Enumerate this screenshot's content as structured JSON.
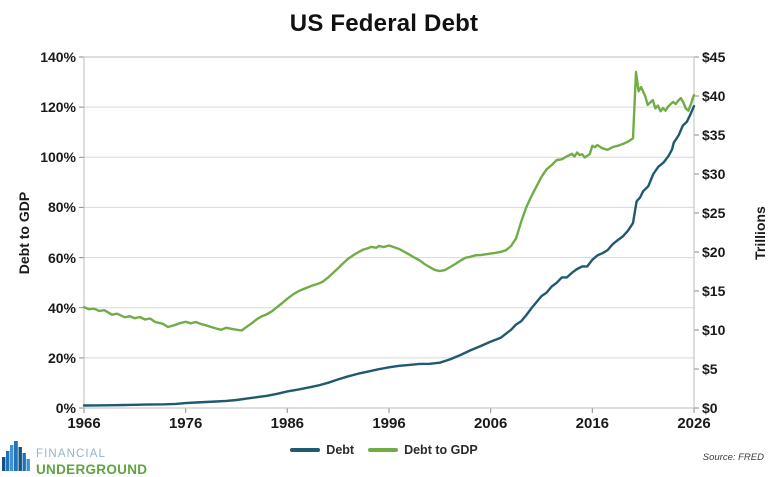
{
  "title": "US Federal Debt",
  "left_axis": {
    "title": "Debt to GDP",
    "min": 0,
    "max": 140,
    "ticks": [
      "0%",
      "20%",
      "40%",
      "60%",
      "80%",
      "100%",
      "120%",
      "140%"
    ]
  },
  "right_axis": {
    "title": "Trillions",
    "min": 0,
    "max": 45,
    "ticks": [
      "$0",
      "$5",
      "$10",
      "$15",
      "$20",
      "$25",
      "$30",
      "$35",
      "$40",
      "$45"
    ]
  },
  "x_axis": {
    "min": 1966,
    "max": 2026,
    "ticks": [
      "1966",
      "1976",
      "1986",
      "1996",
      "2006",
      "2016",
      "2026"
    ]
  },
  "legend": [
    {
      "label": "Debt",
      "color": "#1f5a70"
    },
    {
      "label": "Debt to GDP",
      "color": "#70ad47"
    }
  ],
  "footer": {
    "brand_line1": "FINANCIAL",
    "brand_line2": "UNDERGROUND",
    "source": "Source: FRED"
  },
  "colors": {
    "debt_line": "#1f5a70",
    "debt_to_gdp_line": "#70ad47",
    "gridline": "#d9d9d9",
    "brand_blue": "#2272b9",
    "brand_green": "#5da53e"
  },
  "chart_data": {
    "type": "line",
    "title": "US Federal Debt",
    "x_range": [
      1966,
      2026
    ],
    "left_ylim": [
      0,
      140
    ],
    "right_ylim": [
      0,
      45
    ],
    "grid": "horizontal-only",
    "legend_position": "bottom-center",
    "series": [
      {
        "name": "Debt",
        "axis": "right",
        "unit": "USD trillions",
        "color": "#1f5a70",
        "points": [
          [
            1966,
            0.32
          ],
          [
            1967,
            0.33
          ],
          [
            1968,
            0.35
          ],
          [
            1969,
            0.36
          ],
          [
            1970,
            0.38
          ],
          [
            1971,
            0.41
          ],
          [
            1972,
            0.44
          ],
          [
            1973,
            0.46
          ],
          [
            1974,
            0.48
          ],
          [
            1975,
            0.53
          ],
          [
            1976,
            0.63
          ],
          [
            1977,
            0.7
          ],
          [
            1978,
            0.77
          ],
          [
            1979,
            0.83
          ],
          [
            1980,
            0.91
          ],
          [
            1981,
            1.03
          ],
          [
            1982,
            1.2
          ],
          [
            1983,
            1.38
          ],
          [
            1984,
            1.57
          ],
          [
            1985,
            1.82
          ],
          [
            1986,
            2.13
          ],
          [
            1987,
            2.35
          ],
          [
            1988,
            2.6
          ],
          [
            1989,
            2.87
          ],
          [
            1990,
            3.23
          ],
          [
            1991,
            3.67
          ],
          [
            1992,
            4.06
          ],
          [
            1993,
            4.41
          ],
          [
            1994,
            4.69
          ],
          [
            1995,
            4.97
          ],
          [
            1996,
            5.22
          ],
          [
            1997,
            5.41
          ],
          [
            1998,
            5.53
          ],
          [
            1999,
            5.66
          ],
          [
            2000,
            5.67
          ],
          [
            2001,
            5.81
          ],
          [
            2002,
            6.23
          ],
          [
            2003,
            6.78
          ],
          [
            2004,
            7.38
          ],
          [
            2005,
            7.93
          ],
          [
            2006,
            8.51
          ],
          [
            2007,
            9.01
          ],
          [
            2008,
            10.02
          ],
          [
            2008.5,
            10.7
          ],
          [
            2009,
            11.13
          ],
          [
            2009.5,
            11.91
          ],
          [
            2010,
            12.77
          ],
          [
            2010.5,
            13.56
          ],
          [
            2011,
            14.34
          ],
          [
            2011.5,
            14.79
          ],
          [
            2012,
            15.58
          ],
          [
            2012.5,
            16.07
          ],
          [
            2013,
            16.74
          ],
          [
            2013.5,
            16.74
          ],
          [
            2014,
            17.35
          ],
          [
            2014.5,
            17.82
          ],
          [
            2015,
            18.15
          ],
          [
            2015.5,
            18.15
          ],
          [
            2016,
            19.0
          ],
          [
            2016.5,
            19.57
          ],
          [
            2017,
            19.85
          ],
          [
            2017.5,
            20.24
          ],
          [
            2018,
            21.0
          ],
          [
            2018.5,
            21.52
          ],
          [
            2019,
            22.0
          ],
          [
            2019.5,
            22.72
          ],
          [
            2020,
            23.7
          ],
          [
            2020.35,
            26.5
          ],
          [
            2020.7,
            27.0
          ],
          [
            2021,
            27.8
          ],
          [
            2021.5,
            28.43
          ],
          [
            2022,
            30.0
          ],
          [
            2022.5,
            30.93
          ],
          [
            2023,
            31.46
          ],
          [
            2023.5,
            32.33
          ],
          [
            2023.85,
            33.17
          ],
          [
            2024,
            34.0
          ],
          [
            2024.5,
            35.0
          ],
          [
            2024.9,
            36.2
          ],
          [
            2025.3,
            36.7
          ],
          [
            2025.6,
            37.5
          ],
          [
            2026,
            38.7
          ]
        ]
      },
      {
        "name": "Debt to GDP",
        "axis": "left",
        "unit": "percent",
        "color": "#70ad47",
        "points": [
          [
            1966,
            40.2
          ],
          [
            1966.5,
            39.4
          ],
          [
            1967,
            39.6
          ],
          [
            1967.5,
            38.7
          ],
          [
            1968,
            39.0
          ],
          [
            1968.75,
            37.2
          ],
          [
            1969.25,
            37.6
          ],
          [
            1970,
            36.2
          ],
          [
            1970.5,
            36.6
          ],
          [
            1971,
            35.8
          ],
          [
            1971.5,
            36.3
          ],
          [
            1972,
            35.3
          ],
          [
            1972.5,
            35.7
          ],
          [
            1973,
            34.3
          ],
          [
            1973.75,
            33.6
          ],
          [
            1974.25,
            32.3
          ],
          [
            1975,
            33.2
          ],
          [
            1975.5,
            33.9
          ],
          [
            1976,
            34.4
          ],
          [
            1976.5,
            33.8
          ],
          [
            1977,
            34.3
          ],
          [
            1977.5,
            33.5
          ],
          [
            1978,
            33.0
          ],
          [
            1978.5,
            32.3
          ],
          [
            1979,
            31.7
          ],
          [
            1979.5,
            31.2
          ],
          [
            1980,
            32.0
          ],
          [
            1980.75,
            31.4
          ],
          [
            1981.5,
            30.9
          ],
          [
            1982,
            32.4
          ],
          [
            1982.5,
            33.8
          ],
          [
            1983,
            35.4
          ],
          [
            1983.5,
            36.6
          ],
          [
            1984,
            37.4
          ],
          [
            1984.5,
            38.6
          ],
          [
            1985,
            40.3
          ],
          [
            1985.5,
            41.9
          ],
          [
            1986,
            43.6
          ],
          [
            1986.5,
            45.1
          ],
          [
            1987,
            46.4
          ],
          [
            1987.5,
            47.3
          ],
          [
            1988,
            48.1
          ],
          [
            1988.5,
            48.9
          ],
          [
            1989,
            49.5
          ],
          [
            1989.5,
            50.4
          ],
          [
            1990,
            52.0
          ],
          [
            1990.5,
            53.9
          ],
          [
            1991,
            55.8
          ],
          [
            1991.5,
            57.8
          ],
          [
            1992,
            59.6
          ],
          [
            1992.5,
            61.0
          ],
          [
            1993,
            62.2
          ],
          [
            1993.5,
            63.2
          ],
          [
            1994,
            63.8
          ],
          [
            1994.25,
            64.3
          ],
          [
            1994.75,
            63.9
          ],
          [
            1995,
            64.6
          ],
          [
            1995.5,
            64.2
          ],
          [
            1996,
            64.8
          ],
          [
            1996.5,
            64.1
          ],
          [
            1997,
            63.4
          ],
          [
            1997.5,
            62.3
          ],
          [
            1998,
            61.2
          ],
          [
            1998.5,
            60.0
          ],
          [
            1999,
            58.9
          ],
          [
            1999.5,
            57.4
          ],
          [
            2000,
            56.2
          ],
          [
            2000.5,
            55.1
          ],
          [
            2001,
            54.6
          ],
          [
            2001.5,
            55.0
          ],
          [
            2002,
            56.2
          ],
          [
            2002.5,
            57.4
          ],
          [
            2003,
            58.7
          ],
          [
            2003.5,
            59.9
          ],
          [
            2004,
            60.3
          ],
          [
            2004.5,
            60.9
          ],
          [
            2005,
            61.0
          ],
          [
            2005.5,
            61.3
          ],
          [
            2006,
            61.6
          ],
          [
            2006.5,
            61.9
          ],
          [
            2007,
            62.3
          ],
          [
            2007.5,
            62.9
          ],
          [
            2008,
            64.6
          ],
          [
            2008.5,
            67.7
          ],
          [
            2009,
            74.3
          ],
          [
            2009.5,
            80.1
          ],
          [
            2010,
            84.4
          ],
          [
            2010.5,
            88.3
          ],
          [
            2011,
            92.2
          ],
          [
            2011.5,
            95.2
          ],
          [
            2012,
            96.9
          ],
          [
            2012.5,
            98.9
          ],
          [
            2013,
            99.2
          ],
          [
            2013.5,
            100.4
          ],
          [
            2014,
            101.4
          ],
          [
            2014.25,
            100.3
          ],
          [
            2014.5,
            101.9
          ],
          [
            2014.75,
            100.9
          ],
          [
            2015,
            101.2
          ],
          [
            2015.25,
            99.9
          ],
          [
            2015.5,
            100.6
          ],
          [
            2015.75,
            101.3
          ],
          [
            2016,
            104.6
          ],
          [
            2016.25,
            104.0
          ],
          [
            2016.5,
            104.9
          ],
          [
            2016.75,
            104.2
          ],
          [
            2017,
            103.6
          ],
          [
            2017.5,
            103.0
          ],
          [
            2018,
            104.1
          ],
          [
            2018.5,
            104.6
          ],
          [
            2019,
            105.3
          ],
          [
            2019.5,
            106.2
          ],
          [
            2020,
            107.6
          ],
          [
            2020.3,
            134.0
          ],
          [
            2020.55,
            126.3
          ],
          [
            2020.8,
            128.0
          ],
          [
            2021,
            126.2
          ],
          [
            2021.2,
            124.4
          ],
          [
            2021.45,
            120.9
          ],
          [
            2021.7,
            121.9
          ],
          [
            2021.95,
            122.8
          ],
          [
            2022.2,
            119.5
          ],
          [
            2022.45,
            120.6
          ],
          [
            2022.7,
            118.4
          ],
          [
            2022.95,
            119.6
          ],
          [
            2023.2,
            118.6
          ],
          [
            2023.45,
            120.2
          ],
          [
            2023.7,
            121.2
          ],
          [
            2023.95,
            122.1
          ],
          [
            2024.2,
            121.2
          ],
          [
            2024.45,
            122.6
          ],
          [
            2024.7,
            123.6
          ],
          [
            2024.95,
            121.9
          ],
          [
            2025.2,
            119.4
          ],
          [
            2025.45,
            118.6
          ],
          [
            2025.7,
            121.2
          ],
          [
            2025.85,
            123.3
          ],
          [
            2026,
            124.8
          ]
        ]
      }
    ]
  }
}
